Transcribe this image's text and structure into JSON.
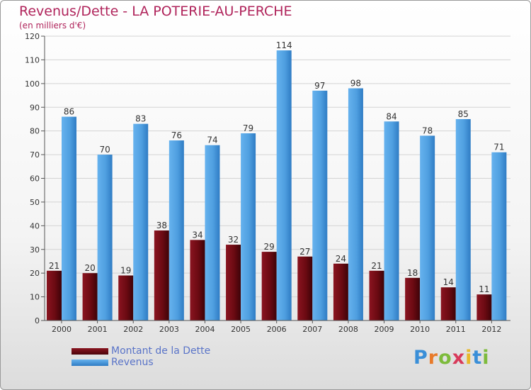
{
  "title": "Revenus/Dette - LA POTERIE-AU-PERCHE",
  "subtitle": "(en milliers d'€)",
  "logo": {
    "letters": [
      "P",
      "r",
      "o",
      "x",
      "i",
      "t",
      "i"
    ],
    "colors": [
      "#3a8fd8",
      "#e87a2a",
      "#7dbb3c",
      "#d83a5a",
      "#e8b82a",
      "#3a8fd8",
      "#7dbb3c"
    ]
  },
  "colors": {
    "dette": "#6b0a12",
    "revenus": "#4f9fe0",
    "title": "#b0245b"
  },
  "chart_data": {
    "type": "bar",
    "title": "Revenus/Dette - LA POTERIE-AU-PERCHE",
    "subtitle": "(en milliers d'€)",
    "categories": [
      "2000",
      "2001",
      "2002",
      "2003",
      "2004",
      "2005",
      "2006",
      "2007",
      "2008",
      "2009",
      "2010",
      "2011",
      "2012"
    ],
    "series": [
      {
        "name": "Montant de la Dette",
        "values": [
          21,
          20,
          19,
          38,
          34,
          32,
          29,
          27,
          24,
          21,
          18,
          14,
          11
        ]
      },
      {
        "name": "Revenus",
        "values": [
          86,
          70,
          83,
          76,
          74,
          79,
          114,
          97,
          98,
          84,
          78,
          85,
          71
        ]
      }
    ],
    "ylim": [
      0,
      120
    ],
    "yticks": [
      0,
      10,
      20,
      30,
      40,
      50,
      60,
      70,
      80,
      90,
      100,
      110,
      120
    ],
    "grid": true,
    "legend_position": "bottom-left"
  }
}
